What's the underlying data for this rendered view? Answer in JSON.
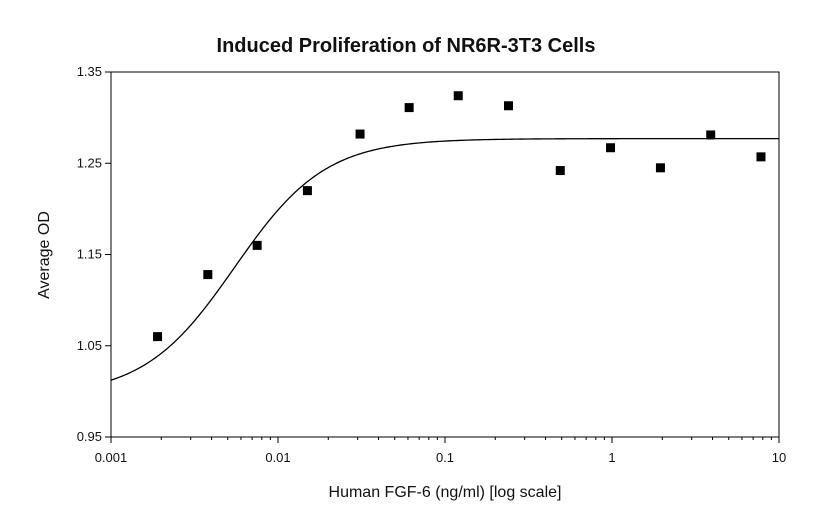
{
  "chart_data": {
    "type": "scatter",
    "title": "Induced Proliferation of NR6R-3T3 Cells",
    "xlabel": "Human FGF-6 (ng/ml) [log scale]",
    "ylabel": "Average OD",
    "xscale": "log",
    "xlim": [
      0.001,
      10
    ],
    "ylim": [
      0.95,
      1.35
    ],
    "x_ticks": [
      0.001,
      0.01,
      0.1,
      1,
      10
    ],
    "x_tick_labels": [
      "0.001",
      "0.01",
      "0.1",
      "1",
      "10"
    ],
    "y_ticks": [
      0.95,
      1.05,
      1.15,
      1.25,
      1.35
    ],
    "y_tick_labels": [
      "0.95",
      "1.05",
      "1.15",
      "1.25",
      "1.35"
    ],
    "grid": false,
    "marker": "square",
    "series": [
      {
        "x": [
          0.0019,
          0.0038,
          0.0075,
          0.015,
          0.031,
          0.061,
          0.12,
          0.24,
          0.49,
          0.98,
          1.95,
          3.9,
          7.8
        ],
        "y": [
          1.06,
          1.128,
          1.16,
          1.22,
          1.282,
          1.311,
          1.324,
          1.313,
          1.242,
          1.267,
          1.245,
          1.281,
          1.257
        ]
      }
    ],
    "fit_curve": {
      "model": "4PL",
      "bottom": 0.995,
      "top": 1.277,
      "ec50": 0.0055,
      "hill": 1.6
    },
    "colors": {
      "marker": "#000000",
      "curve": "#000000",
      "axis": "#000000"
    }
  }
}
